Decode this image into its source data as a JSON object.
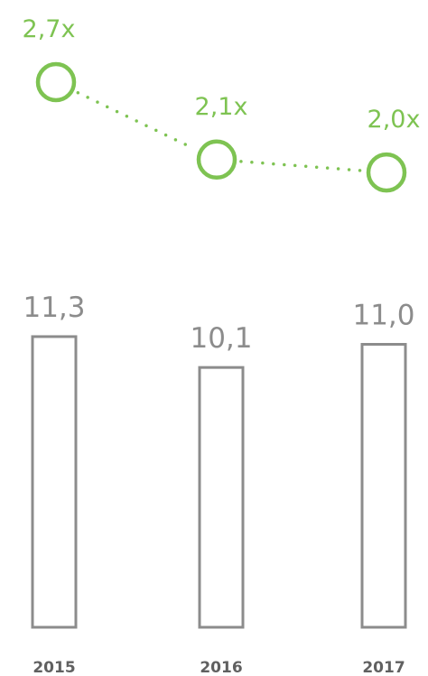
{
  "chart_data": {
    "type": "bar",
    "categories": [
      "2015",
      "2016",
      "2017"
    ],
    "series": [
      {
        "type": "bar",
        "values": [
          11.3,
          10.1,
          11.0
        ],
        "labels": [
          "11,3",
          "10,1",
          "11,0"
        ]
      },
      {
        "type": "line",
        "values": [
          2.7,
          2.1,
          2.0
        ],
        "labels": [
          "2,7x",
          "2,1x",
          "2,0x"
        ]
      }
    ],
    "colors": {
      "bars": "#8c8c8c",
      "line": "#7ec352",
      "year_labels": "#606060"
    }
  }
}
